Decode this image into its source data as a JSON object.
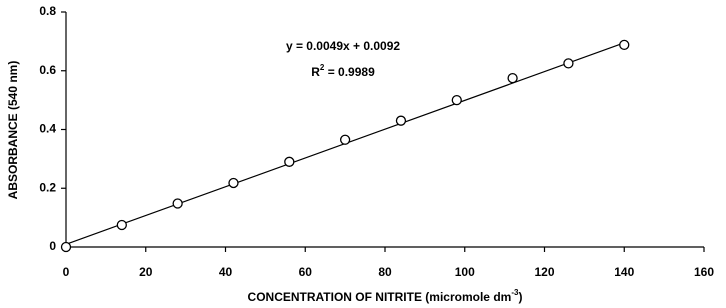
{
  "chart_data": {
    "type": "scatter",
    "annotations": [
      "y = 0.0049x + 0.0092"
    ],
    "r_squared": [
      "R",
      "2",
      " = 0.9989"
    ],
    "x_label": [
      "CONCENTRATION OF NITRITE (micromole dm",
      "-3",
      ")"
    ],
    "y_label": "ABSORBANCE (540 nm)",
    "x": [
      0,
      14,
      28,
      42,
      56,
      70,
      84,
      98,
      112,
      126,
      140
    ],
    "values": [
      0,
      0.075,
      0.148,
      0.218,
      0.29,
      0.365,
      0.43,
      0.5,
      0.575,
      0.625,
      0.688
    ],
    "trendline": {
      "x": [
        0,
        140
      ],
      "values": [
        0.0092,
        0.695
      ]
    },
    "color": "#000000",
    "xlim": [
      0,
      160
    ],
    "xticks": [
      0,
      20,
      40,
      60,
      80,
      100,
      120,
      140,
      160
    ],
    "ylim": [
      0,
      0.8
    ],
    "yticks": [
      0,
      0.2,
      0.4,
      0.6,
      0.8
    ],
    "grid": false
  }
}
